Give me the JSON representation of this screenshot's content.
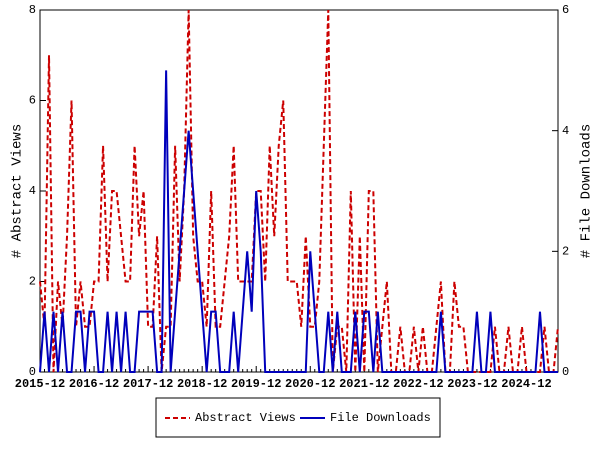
{
  "chart_data": {
    "type": "line",
    "categories": [
      "2015-12",
      null,
      null,
      null,
      null,
      null,
      null,
      null,
      null,
      null,
      null,
      null,
      "2016-12",
      null,
      null,
      null,
      null,
      null,
      null,
      null,
      null,
      null,
      null,
      null,
      "2017-12",
      null,
      null,
      null,
      null,
      null,
      null,
      null,
      null,
      null,
      null,
      null,
      "2018-12",
      null,
      null,
      null,
      null,
      null,
      null,
      null,
      null,
      null,
      null,
      null,
      "2019-12",
      null,
      null,
      null,
      null,
      null,
      null,
      null,
      null,
      null,
      null,
      null,
      "2020-12",
      null,
      null,
      null,
      null,
      null,
      null,
      null,
      null,
      null,
      null,
      null,
      "2021-12",
      null,
      null,
      null,
      null,
      null,
      null,
      null,
      null,
      null,
      null,
      null,
      "2022-12",
      null,
      null,
      null,
      null,
      null,
      null,
      null,
      null,
      null,
      null,
      null,
      "2023-12",
      null,
      null,
      null,
      null,
      null,
      null,
      null,
      null,
      null,
      null,
      null,
      "2024-12",
      null,
      null,
      null,
      null,
      null,
      null,
      null
    ],
    "y_label": "# Abstract Views",
    "y2_label": "# File Downloads",
    "ylim": [
      0,
      8
    ],
    "yticks": [
      0,
      2,
      4,
      6,
      8
    ],
    "y2lim": [
      0,
      6
    ],
    "y2ticks": [
      0,
      2,
      4,
      6
    ],
    "legend": "bottom",
    "series": [
      {
        "name": "Abstract Views",
        "color": "#cc0000",
        "dash": true,
        "values": [
          2,
          1,
          7,
          0,
          2,
          1,
          3,
          6,
          1,
          2,
          1,
          1,
          2,
          2,
          5,
          2,
          4,
          4,
          3,
          2,
          2,
          5,
          3,
          4,
          1,
          1,
          3,
          0,
          1,
          1,
          5,
          2,
          4,
          8,
          3,
          2,
          2,
          1,
          4,
          1,
          1,
          2,
          3,
          5,
          2,
          2,
          2,
          2,
          4,
          4,
          2,
          5,
          3,
          5,
          6,
          2,
          2,
          2,
          1,
          3,
          1,
          1,
          2,
          5,
          8,
          0,
          1,
          1,
          0,
          4,
          0,
          3,
          0,
          4,
          4,
          0,
          1,
          2,
          0,
          0,
          1,
          0,
          0,
          1,
          0,
          1,
          0,
          0,
          1,
          2,
          0,
          0,
          2,
          1,
          1,
          0,
          0,
          0,
          0,
          0,
          0,
          1,
          0,
          0,
          1,
          0,
          0,
          1,
          0,
          0,
          0,
          0,
          1,
          0,
          0,
          1
        ]
      },
      {
        "name": "File Downloads",
        "color": "#0000bb",
        "dash": false,
        "axis": "y2",
        "values": [
          0,
          1,
          0,
          1,
          0,
          1,
          0,
          0,
          1,
          1,
          0,
          1,
          1,
          0,
          0,
          1,
          0,
          1,
          0,
          1,
          0,
          0,
          1,
          1,
          1,
          1,
          0,
          0,
          5,
          0,
          1,
          2,
          3,
          4,
          3,
          2,
          1,
          0,
          1,
          1,
          0,
          0,
          0,
          1,
          0,
          1,
          2,
          1,
          3,
          2,
          0,
          0,
          0,
          0,
          0,
          0,
          0,
          0,
          0,
          0,
          2,
          1,
          0,
          0,
          1,
          0,
          1,
          0,
          0,
          0,
          1,
          0,
          1,
          1,
          0,
          1,
          0,
          0,
          0,
          0,
          0,
          0,
          0,
          0,
          0,
          0,
          0,
          0,
          0,
          1,
          0,
          0,
          0,
          0,
          0,
          0,
          0,
          1,
          0,
          0,
          1,
          0,
          0,
          0,
          0,
          0,
          0,
          0,
          0,
          0,
          0,
          1,
          0,
          0,
          0,
          0
        ]
      }
    ]
  }
}
